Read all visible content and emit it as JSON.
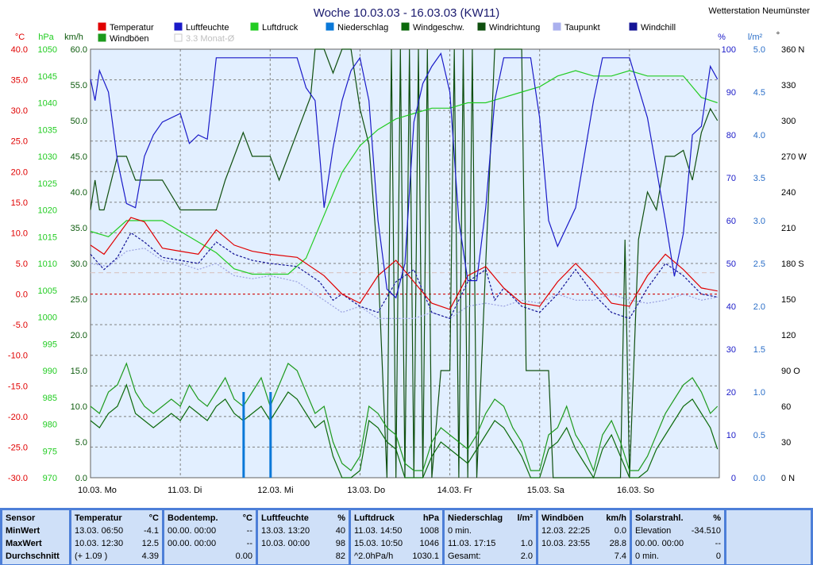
{
  "title": "Woche 10.03.03 - 16.03.03 (KW11)",
  "station": "Wetterstation Neumünster",
  "colors": {
    "temperatur": "#e00000",
    "luftfeuchte": "#1a1ac8",
    "luftdruck": "#22cc22",
    "niederschlag": "#0a78d8",
    "windgeschw": "#0c6a0c",
    "windrichtung": "#0f4f0f",
    "taupunkt": "#9aa0e0",
    "windchill": "#141496",
    "windboeen": "#1d9a1d",
    "monat": "#d8c8c8",
    "plot_bg": "#e2efff",
    "grid": "#808080"
  },
  "legend": [
    {
      "label": "Temperatur",
      "color": "#e00000"
    },
    {
      "label": "Luftfeuchte",
      "color": "#1a1ac8"
    },
    {
      "label": "Luftdruck",
      "color": "#22cc22"
    },
    {
      "label": "Niederschlag",
      "color": "#0a78d8"
    },
    {
      "label": "Windgeschw.",
      "color": "#0c6a0c"
    },
    {
      "label": "Windrichtung",
      "color": "#0f4f0f"
    },
    {
      "label": "Taupunkt",
      "color": "#aab0ee"
    },
    {
      "label": "Windchill",
      "color": "#141496"
    },
    {
      "label": "Windböen",
      "color": "#1d9a1d"
    },
    {
      "label": "3.3 Monat-Ø",
      "color": "#d0d0d0"
    }
  ],
  "chart_data": {
    "type": "line",
    "title": "Woche 10.03.03 - 16.03.03 (KW11)",
    "x_ticks": [
      "10.03.  Mo",
      "11.03.  Di",
      "12.03.  Mi",
      "13.03.  Do",
      "14.03.  Fr",
      "15.03.  Sa",
      "16.03.  So"
    ],
    "grid": true,
    "axes": {
      "temp_unit": "°C",
      "temp_ticks": [
        "40.0",
        "35.0",
        "30.0",
        "25.0",
        "20.0",
        "15.0",
        "10.0",
        "5.0",
        "0.0",
        "-5.0",
        "-10.0",
        "-15.0",
        "-20.0",
        "-25.0",
        "-30.0"
      ],
      "temp_range": [
        -30,
        40
      ],
      "pressure_unit": "hPa",
      "pressure_ticks": [
        "1050",
        "1045",
        "1040",
        "1035",
        "1030",
        "1025",
        "1020",
        "1015",
        "1010",
        "1005",
        "1000",
        "995",
        "990",
        "985",
        "980",
        "975",
        "970"
      ],
      "pressure_range": [
        970,
        1050
      ],
      "wind_unit": "km/h",
      "wind_ticks": [
        "60.0",
        "55.0",
        "50.0",
        "45.0",
        "40.0",
        "35.0",
        "30.0",
        "25.0",
        "20.0",
        "15.0",
        "10.0",
        "5.0",
        "0.0"
      ],
      "wind_range": [
        0,
        60
      ],
      "humidity_unit": "%",
      "humidity_ticks": [
        "100",
        "90",
        "80",
        "70",
        "60",
        "50",
        "40",
        "30",
        "20",
        "10",
        "0"
      ],
      "humidity_range": [
        0,
        100
      ],
      "rain_unit": "l/m²",
      "rain_ticks": [
        "5.0",
        "4.5",
        "4.0",
        "3.5",
        "3.0",
        "2.5",
        "2.0",
        "1.5",
        "1.0",
        "0.5",
        "0.0"
      ],
      "rain_range": [
        0,
        5
      ],
      "dir_unit": "°",
      "dir_ticks": [
        "360 N",
        "330",
        "300",
        "270 W",
        "240",
        "210",
        "180 S",
        "150",
        "120",
        "90  O",
        "60",
        "30",
        "0  N"
      ],
      "dir_range": [
        0,
        360
      ]
    },
    "series": [
      {
        "name": "Temperatur",
        "axis": "temp",
        "x": [
          0,
          0.15,
          0.3,
          0.45,
          0.6,
          0.8,
          1.0,
          1.2,
          1.4,
          1.6,
          1.8,
          2.0,
          2.3,
          2.6,
          2.8,
          3.0,
          3.2,
          3.4,
          3.6,
          3.8,
          4.0,
          4.2,
          4.4,
          4.6,
          4.8,
          5.0,
          5.2,
          5.4,
          5.6,
          5.8,
          6.0,
          6.2,
          6.4,
          6.6,
          6.8,
          6.98
        ],
        "values": [
          8,
          6.5,
          9.5,
          12.5,
          11.8,
          7.5,
          7,
          6.5,
          10.5,
          8,
          7,
          6.5,
          6,
          3,
          0,
          -1.5,
          3,
          5.5,
          2,
          -1.5,
          -2.5,
          3,
          4.5,
          1,
          -1.5,
          -2,
          2,
          5,
          2,
          -1.5,
          -2,
          3,
          6.5,
          4,
          1,
          0.5
        ]
      },
      {
        "name": "Taupunkt",
        "axis": "temp",
        "x": [
          0,
          0.2,
          0.4,
          0.6,
          0.8,
          1.0,
          1.2,
          1.4,
          1.6,
          1.8,
          2.0,
          2.3,
          2.6,
          2.8,
          3.0,
          3.2,
          3.4,
          3.6,
          3.8,
          4.0,
          4.2,
          4.4,
          4.6,
          4.8,
          5.0,
          5.2,
          5.4,
          5.6,
          5.8,
          6.0,
          6.2,
          6.4,
          6.6,
          6.8,
          6.98
        ],
        "values": [
          5,
          4.5,
          7,
          7.5,
          5.5,
          5,
          4,
          5,
          3,
          2.5,
          3,
          2,
          -1,
          -3,
          -2,
          -4,
          -4,
          -4,
          -3,
          -4,
          -2,
          -1.5,
          -2,
          -1,
          -1.5,
          0,
          -1,
          -1,
          0,
          -1,
          -1.5,
          -1,
          0,
          -1,
          -0.5
        ]
      },
      {
        "name": "Windchill",
        "axis": "temp",
        "x": [
          0,
          0.15,
          0.3,
          0.45,
          0.6,
          0.8,
          1.0,
          1.2,
          1.4,
          1.6,
          1.8,
          2.0,
          2.3,
          2.55,
          2.7,
          2.8,
          3.0,
          3.2,
          3.4,
          3.6,
          3.8,
          4.0,
          4.2,
          4.4,
          4.5,
          4.6,
          4.8,
          5.0,
          5.2,
          5.4,
          5.6,
          5.8,
          6.0,
          6.2,
          6.4,
          6.6,
          6.8,
          6.98
        ],
        "values": [
          6.5,
          4,
          6,
          10,
          8.5,
          6,
          5.5,
          5,
          8.5,
          6.5,
          5.5,
          5,
          4.5,
          2,
          -1,
          0,
          -2,
          -3,
          2,
          4,
          -3,
          -4,
          2,
          4,
          -1,
          1,
          -2,
          -3,
          0,
          4,
          0,
          -3,
          -4,
          1,
          5,
          3,
          0,
          -0.5
        ]
      },
      {
        "name": "Luftfeuchte",
        "axis": "humidity",
        "x": [
          0,
          0.05,
          0.1,
          0.2,
          0.3,
          0.4,
          0.5,
          0.6,
          0.7,
          0.8,
          1.0,
          1.1,
          1.2,
          1.3,
          1.4,
          1.5,
          1.6,
          1.7,
          1.8,
          1.9,
          2.0,
          2.3,
          2.4,
          2.5,
          2.6,
          2.7,
          2.8,
          2.9,
          3.0,
          3.1,
          3.2,
          3.3,
          3.4,
          3.5,
          3.6,
          3.7,
          3.8,
          3.9,
          4.0,
          4.1,
          4.2,
          4.3,
          4.4,
          4.5,
          4.6,
          4.7,
          4.8,
          4.9,
          5.0,
          5.1,
          5.2,
          5.4,
          5.6,
          5.7,
          5.8,
          5.9,
          6.0,
          6.2,
          6.4,
          6.5,
          6.6,
          6.7,
          6.8,
          6.9,
          6.98
        ],
        "values": [
          93,
          88,
          95,
          90,
          74,
          64,
          63,
          75,
          80,
          83,
          85,
          78,
          80,
          79,
          98,
          98,
          98,
          98,
          98,
          98,
          98,
          98,
          91,
          88,
          63,
          77,
          88,
          95,
          98,
          88,
          60,
          44,
          42,
          50,
          83,
          92,
          96,
          99,
          90,
          60,
          46,
          46,
          63,
          88,
          98,
          98,
          98,
          98,
          84,
          60,
          54,
          63,
          88,
          98,
          98,
          98,
          98,
          84,
          60,
          47,
          57,
          80,
          82,
          96,
          93
        ]
      },
      {
        "name": "Luftdruck",
        "axis": "pressure",
        "x": [
          0,
          0.2,
          0.4,
          0.6,
          0.8,
          1.0,
          1.2,
          1.4,
          1.6,
          1.8,
          2.0,
          2.2,
          2.4,
          2.6,
          2.8,
          3.0,
          3.2,
          3.4,
          3.6,
          3.8,
          4.0,
          4.2,
          4.4,
          4.6,
          4.8,
          5.0,
          5.2,
          5.4,
          5.6,
          5.8,
          6.0,
          6.2,
          6.4,
          6.6,
          6.8,
          6.98
        ],
        "values": [
          1016,
          1015,
          1018,
          1018,
          1018,
          1016,
          1014,
          1012,
          1009,
          1008,
          1008,
          1008,
          1011,
          1019,
          1027,
          1032,
          1035,
          1037,
          1038,
          1039,
          1039,
          1040,
          1040,
          1041,
          1042,
          1043,
          1045,
          1046,
          1045,
          1045,
          1046,
          1045,
          1045,
          1045,
          1041,
          1040
        ]
      },
      {
        "name": "Windgeschw.",
        "axis": "wind",
        "x": [
          0,
          0.1,
          0.2,
          0.3,
          0.4,
          0.5,
          0.6,
          0.7,
          0.8,
          0.9,
          1.0,
          1.1,
          1.2,
          1.3,
          1.4,
          1.5,
          1.6,
          1.7,
          1.8,
          1.9,
          2.0,
          2.1,
          2.2,
          2.3,
          2.4,
          2.5,
          2.6,
          2.7,
          2.8,
          2.9,
          3.0,
          3.1,
          3.2,
          3.3,
          3.4,
          3.5,
          3.6,
          3.7,
          3.8,
          3.9,
          4.0,
          4.1,
          4.2,
          4.3,
          4.4,
          4.5,
          4.6,
          4.7,
          4.8,
          4.9,
          5.0,
          5.1,
          5.2,
          5.3,
          5.4,
          5.5,
          5.6,
          5.7,
          5.8,
          5.9,
          6.0,
          6.1,
          6.2,
          6.3,
          6.4,
          6.5,
          6.6,
          6.7,
          6.8,
          6.9,
          6.98
        ],
        "values": [
          8,
          7,
          9,
          10,
          13,
          9,
          8,
          7,
          8,
          9,
          8,
          10,
          9,
          8,
          10,
          11,
          9,
          8,
          9,
          10,
          8,
          10,
          12,
          11,
          9,
          7,
          8,
          3,
          0,
          0,
          1,
          8,
          7,
          5,
          4,
          0,
          0,
          0,
          3,
          5,
          4,
          3,
          2,
          4,
          6,
          8,
          7,
          5,
          3,
          0,
          0,
          4,
          5,
          7,
          4,
          2,
          0,
          4,
          6,
          3,
          0,
          0,
          1,
          4,
          6,
          8,
          10,
          11,
          9,
          7,
          4
        ]
      },
      {
        "name": "Windböen",
        "axis": "wind",
        "x": [
          0,
          0.1,
          0.2,
          0.3,
          0.4,
          0.5,
          0.6,
          0.7,
          0.8,
          0.9,
          1.0,
          1.1,
          1.2,
          1.3,
          1.4,
          1.5,
          1.6,
          1.7,
          1.8,
          1.9,
          2.0,
          2.1,
          2.2,
          2.3,
          2.4,
          2.5,
          2.6,
          2.7,
          2.8,
          2.9,
          3.0,
          3.1,
          3.2,
          3.3,
          3.4,
          3.5,
          3.6,
          3.7,
          3.8,
          3.9,
          4.0,
          4.1,
          4.2,
          4.3,
          4.4,
          4.5,
          4.6,
          4.7,
          4.8,
          4.9,
          5.0,
          5.1,
          5.2,
          5.3,
          5.4,
          5.5,
          5.6,
          5.7,
          5.8,
          5.9,
          6.0,
          6.1,
          6.2,
          6.3,
          6.4,
          6.5,
          6.6,
          6.7,
          6.8,
          6.9,
          6.98
        ],
        "values": [
          10,
          9,
          12,
          13,
          16,
          12,
          10,
          9,
          10,
          11,
          10,
          13,
          11,
          10,
          12,
          14,
          11,
          10,
          12,
          14,
          10,
          13,
          16,
          15,
          12,
          9,
          10,
          5,
          2,
          1,
          3,
          10,
          9,
          7,
          6,
          2,
          1,
          1,
          5,
          7,
          6,
          5,
          4,
          6,
          9,
          11,
          10,
          7,
          5,
          1,
          1,
          6,
          7,
          10,
          6,
          4,
          1,
          6,
          8,
          5,
          1,
          1,
          3,
          6,
          9,
          11,
          13,
          14,
          12,
          9,
          10
        ]
      },
      {
        "name": "Windrichtung",
        "axis": "dir",
        "x": [
          0,
          0.05,
          0.1,
          0.15,
          0.3,
          0.4,
          0.5,
          0.6,
          0.8,
          1.0,
          1.2,
          1.4,
          1.5,
          1.6,
          1.7,
          1.8,
          1.9,
          2.0,
          2.1,
          2.2,
          2.3,
          2.4,
          2.45,
          2.5,
          2.6,
          2.7,
          2.8,
          2.9,
          3.0,
          3.1,
          3.2,
          3.3,
          3.35,
          3.4,
          3.45,
          3.5,
          3.55,
          3.6,
          3.65,
          3.7,
          3.75,
          3.8,
          3.9,
          4.0,
          4.05,
          4.1,
          4.15,
          4.2,
          4.25,
          4.3,
          4.5,
          4.6,
          4.7,
          4.8,
          4.85,
          4.9,
          5.0,
          5.1,
          5.15,
          5.2,
          5.3,
          5.4,
          5.5,
          5.6,
          5.7,
          5.8,
          5.9,
          5.95,
          6.0,
          6.1,
          6.2,
          6.3,
          6.4,
          6.5,
          6.6,
          6.7,
          6.8,
          6.9,
          6.98
        ],
        "values": [
          225,
          250,
          225,
          225,
          270,
          270,
          250,
          250,
          250,
          225,
          225,
          225,
          250,
          270,
          290,
          270,
          270,
          270,
          250,
          270,
          290,
          310,
          320,
          360,
          360,
          340,
          360,
          360,
          310,
          280,
          180,
          0,
          360,
          0,
          360,
          0,
          360,
          0,
          360,
          0,
          360,
          0,
          90,
          90,
          360,
          0,
          360,
          0,
          360,
          0,
          360,
          360,
          360,
          360,
          90,
          90,
          90,
          90,
          0,
          0,
          0,
          0,
          0,
          0,
          0,
          0,
          0,
          200,
          0,
          200,
          240,
          225,
          270,
          270,
          275,
          250,
          290,
          310,
          300
        ]
      },
      {
        "name": "Niederschlag",
        "axis": "rain",
        "bars": [
          {
            "x": 1.7,
            "value": 1.0
          },
          {
            "x": 2.0,
            "value": 1.0
          }
        ]
      },
      {
        "name": "3.3 Monat-Ø",
        "axis": "temp",
        "x": [
          0,
          6.98
        ],
        "values": [
          3.5,
          3.5
        ]
      }
    ]
  },
  "stats": {
    "rows_labels": [
      "Sensor",
      "MinWert",
      "MaxWert",
      "Durchschnitt"
    ],
    "panels": [
      {
        "title": "Temperatur",
        "unit": "°C",
        "min": [
          "13.03.  06:50",
          "-4.1"
        ],
        "max": [
          "10.03.  12:30",
          "12.5"
        ],
        "avg": [
          "(+ 1.09 )",
          "4.39"
        ]
      },
      {
        "title": "Bodentemp.",
        "unit": "°C",
        "min": [
          "00.00.  00:00",
          "--"
        ],
        "max": [
          "00.00.  00:00",
          "--"
        ],
        "avg": [
          "",
          "0.00"
        ]
      },
      {
        "title": "Luftfeuchte",
        "unit": "%",
        "min": [
          "13.03.  13:20",
          "40"
        ],
        "max": [
          "10.03.  00:00",
          "98"
        ],
        "avg": [
          "",
          "82"
        ]
      },
      {
        "title": "Luftdruck",
        "unit": "hPa",
        "min": [
          "11.03.  14:50",
          "1008"
        ],
        "max": [
          "15.03.  10:50",
          "1046"
        ],
        "avg": [
          "^2.0hPa/h",
          "1030.1"
        ]
      },
      {
        "title": "Niederschlag",
        "unit": "l/m²",
        "min": [
          "0 min.",
          ""
        ],
        "max": [
          "11.03.  17:15",
          "1.0"
        ],
        "avg": [
          "Gesamt:",
          "2.0"
        ]
      },
      {
        "title": "Windböen",
        "unit": "km/h",
        "min": [
          "12.03.  22:25",
          "0.0"
        ],
        "max": [
          "10.03.  23:55",
          "28.8"
        ],
        "avg": [
          "",
          "7.4"
        ]
      },
      {
        "title": "Solarstrahl.",
        "unit": "%",
        "min": [
          "Elevation",
          "-34.510"
        ],
        "max": [
          "00.00.  00:00",
          "--"
        ],
        "avg": [
          "0 min.",
          "0"
        ]
      }
    ]
  }
}
